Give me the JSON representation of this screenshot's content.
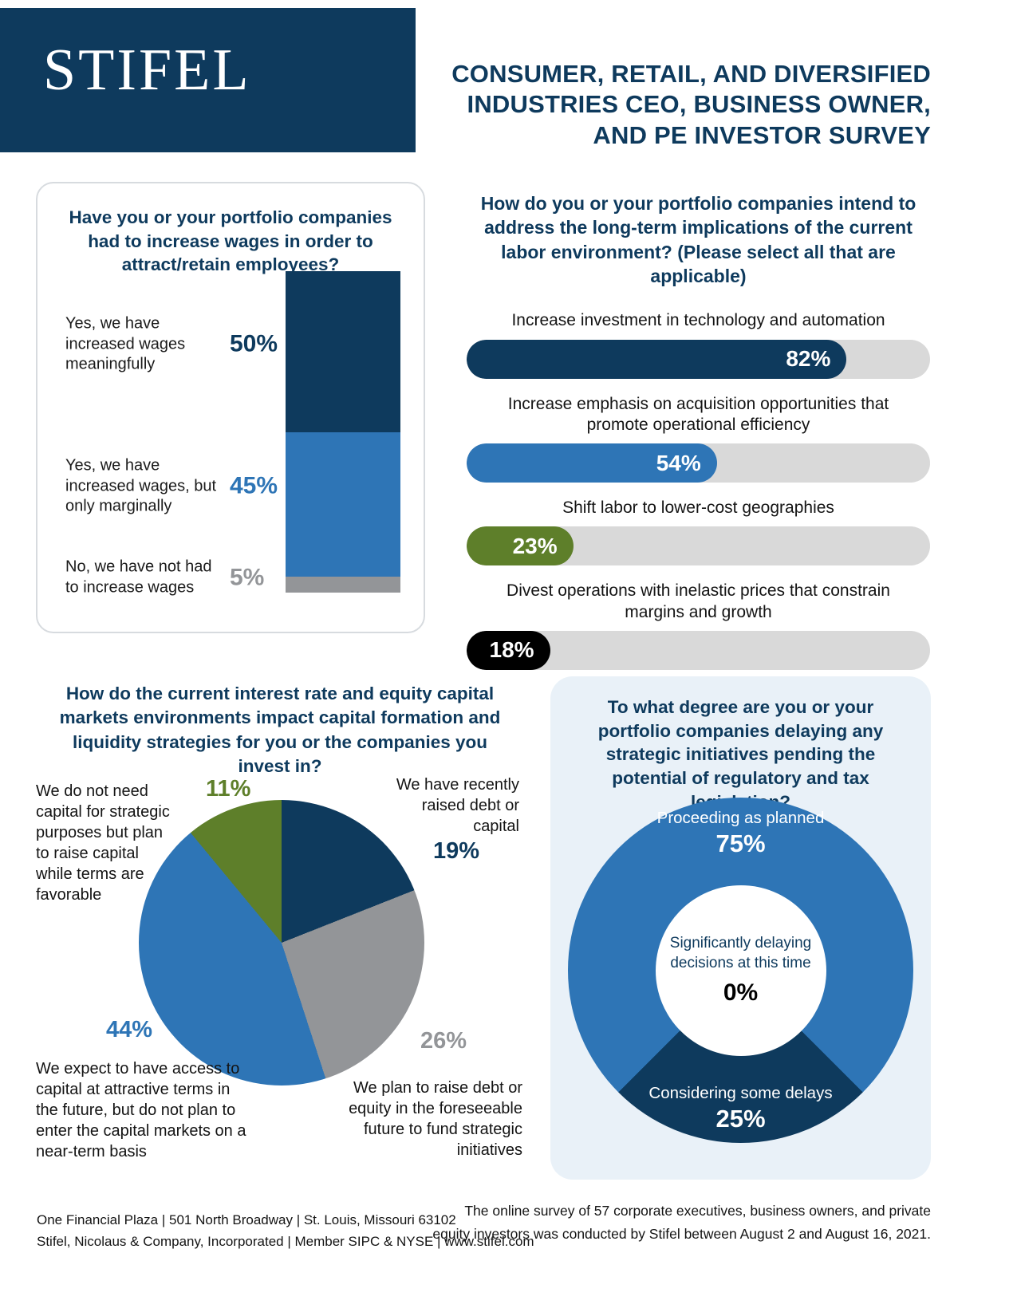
{
  "header": {
    "logo": "STIFEL",
    "title_lines": [
      "CONSUMER, RETAIL, AND DIVERSIFIED",
      "INDUSTRIES CEO, BUSINESS OWNER,",
      "AND PE INVESTOR SURVEY"
    ]
  },
  "colors": {
    "navy": "#0e3a5d",
    "blue": "#2e75b6",
    "green": "#5e7f2a",
    "gray": "#939598",
    "track_gray": "#d9d9d9",
    "black": "#000000",
    "card_blue_bg": "#e9f1f8"
  },
  "chart_data": [
    {
      "type": "bar",
      "variant": "stacked-column",
      "title": "Have you or your portfolio companies had to increase wages in order to attract/retain employees?",
      "categories": [
        "Yes, we have increased wages meaningfully",
        "Yes, we have increased wages, but only marginally",
        "No, we have not had to increase wages"
      ],
      "values": [
        50,
        45,
        5
      ],
      "value_labels": [
        "50%",
        "45%",
        "5%"
      ],
      "colors": [
        "#0e3a5d",
        "#2e75b6",
        "#939598"
      ],
      "ylim": [
        0,
        100
      ]
    },
    {
      "type": "bar",
      "variant": "horizontal-pill",
      "title": "How do you or your portfolio companies intend to address the long-term implications of the current labor environment? (Please select all that are applicable)",
      "categories": [
        "Increase investment in technology and automation",
        "Increase emphasis on acquisition opportunities that promote operational efficiency",
        "Shift labor to lower-cost geographies",
        "Divest operations with inelastic prices that constrain margins and growth"
      ],
      "values": [
        82,
        54,
        23,
        18
      ],
      "value_labels": [
        "82%",
        "54%",
        "23%",
        "18%"
      ],
      "colors": [
        "#0e3a5d",
        "#2e75b6",
        "#5e7f2a",
        "#000000"
      ],
      "xlim": [
        0,
        100
      ]
    },
    {
      "type": "pie",
      "title": "How do the current interest rate and equity capital markets environments impact capital formation and liquidity strategies for you or the companies you invest in?",
      "labels": [
        "We have recently raised debt or capital",
        "We plan to raise debt or equity in the foreseeable future to fund strategic initiatives",
        "We expect to have access to capital at attractive terms in the future, but do not plan to enter the capital markets on a near-term basis",
        "We do not need capital for strategic purposes but plan to raise capital while terms are favorable"
      ],
      "values": [
        19,
        26,
        44,
        11
      ],
      "value_labels": [
        "19%",
        "26%",
        "44%",
        "11%"
      ],
      "colors": [
        "#0e3a5d",
        "#939598",
        "#2e75b6",
        "#5e7f2a"
      ],
      "start_angle_deg": 0,
      "direction": "clockwise"
    },
    {
      "type": "pie",
      "variant": "donut",
      "title": "To what degree are you or your portfolio companies delaying any strategic initiatives pending the potential of regulatory and tax legislation?",
      "labels": [
        "Proceeding as planned",
        "Considering some delays",
        "Significantly delaying decisions at this time"
      ],
      "values": [
        75,
        25,
        0
      ],
      "value_labels": [
        "75%",
        "25%",
        "0%"
      ],
      "colors": [
        "#2e75b6",
        "#0e3a5d",
        "#ffffff"
      ]
    }
  ],
  "footer": {
    "address_line1": "One Financial Plaza | 501 North Broadway | St. Louis, Missouri 63102",
    "address_line2": "Stifel, Nicolaus & Company, Incorporated | Member SIPC & NYSE | www.stifel.com",
    "note_line1": "The online survey of 57 corporate executives, business owners, and private",
    "note_line2": "equity investors was conducted by Stifel between August 2 and August 16, 2021."
  }
}
